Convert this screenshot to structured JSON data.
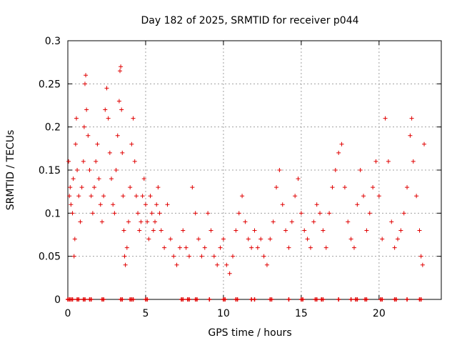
{
  "chart_data": {
    "type": "scatter",
    "title": "Day 182 of 2025, SRMTID for receiver p044",
    "xlabel": "GPS time / hours",
    "ylabel": "SRMTID / TECUs",
    "xlim": [
      0,
      24
    ],
    "ylim": [
      0,
      0.3
    ],
    "grid": true,
    "marker": "+",
    "series_color": "#e00000",
    "x_ticks": [
      0,
      5,
      10,
      15,
      20
    ],
    "y_ticks": [
      0,
      0.05,
      0.1,
      0.15,
      0.2,
      0.25,
      0.3
    ],
    "x_tick_labels": [
      "0",
      "5",
      "10",
      "15",
      "20"
    ],
    "y_tick_labels": [
      "0",
      "0.05",
      "0.1",
      "0.15",
      "0.2",
      "0.25",
      "0.3"
    ],
    "series": [
      {
        "name": "SRMTID",
        "points": [
          [
            0.05,
            0.16
          ],
          [
            0.1,
            0.12
          ],
          [
            0.15,
            0.13
          ],
          [
            0.2,
            0.11
          ],
          [
            0.3,
            0.1
          ],
          [
            0.35,
            0.14
          ],
          [
            0.4,
            0.05
          ],
          [
            0.45,
            0.07
          ],
          [
            0.5,
            0.18
          ],
          [
            0.55,
            0.21
          ],
          [
            0.6,
            0.15
          ],
          [
            0.7,
            0.12
          ],
          [
            0.8,
            0.09
          ],
          [
            0.9,
            0.13
          ],
          [
            1.0,
            0.16
          ],
          [
            1.05,
            0.2
          ],
          [
            1.1,
            0.25
          ],
          [
            1.15,
            0.26
          ],
          [
            1.2,
            0.22
          ],
          [
            1.3,
            0.19
          ],
          [
            1.4,
            0.15
          ],
          [
            1.5,
            0.12
          ],
          [
            1.6,
            0.1
          ],
          [
            1.7,
            0.13
          ],
          [
            1.8,
            0.16
          ],
          [
            1.9,
            0.18
          ],
          [
            2.0,
            0.14
          ],
          [
            2.1,
            0.11
          ],
          [
            2.2,
            0.09
          ],
          [
            2.3,
            0.12
          ],
          [
            2.4,
            0.22
          ],
          [
            2.5,
            0.245
          ],
          [
            2.6,
            0.21
          ],
          [
            2.7,
            0.17
          ],
          [
            2.8,
            0.14
          ],
          [
            2.9,
            0.11
          ],
          [
            3.0,
            0.1
          ],
          [
            3.1,
            0.15
          ],
          [
            3.2,
            0.19
          ],
          [
            3.3,
            0.23
          ],
          [
            3.35,
            0.265
          ],
          [
            3.4,
            0.27
          ],
          [
            3.45,
            0.22
          ],
          [
            3.5,
            0.17
          ],
          [
            3.55,
            0.12
          ],
          [
            3.6,
            0.08
          ],
          [
            3.65,
            0.05
          ],
          [
            3.7,
            0.04
          ],
          [
            3.8,
            0.06
          ],
          [
            3.9,
            0.09
          ],
          [
            4.0,
            0.13
          ],
          [
            4.1,
            0.18
          ],
          [
            4.2,
            0.21
          ],
          [
            4.3,
            0.16
          ],
          [
            4.4,
            0.12
          ],
          [
            4.5,
            0.1
          ],
          [
            4.6,
            0.08
          ],
          [
            4.7,
            0.09
          ],
          [
            4.8,
            0.12
          ],
          [
            4.9,
            0.14
          ],
          [
            5.0,
            0.11
          ],
          [
            5.1,
            0.09
          ],
          [
            5.2,
            0.07
          ],
          [
            5.3,
            0.12
          ],
          [
            5.4,
            0.1
          ],
          [
            5.5,
            0.08
          ],
          [
            5.6,
            0.09
          ],
          [
            5.7,
            0.11
          ],
          [
            5.8,
            0.13
          ],
          [
            5.9,
            0.1
          ],
          [
            6.0,
            0.08
          ],
          [
            6.2,
            0.06
          ],
          [
            6.4,
            0.11
          ],
          [
            6.6,
            0.07
          ],
          [
            6.8,
            0.05
          ],
          [
            7.0,
            0.04
          ],
          [
            7.2,
            0.06
          ],
          [
            7.4,
            0.08
          ],
          [
            7.6,
            0.06
          ],
          [
            7.8,
            0.05
          ],
          [
            8.0,
            0.13
          ],
          [
            8.2,
            0.1
          ],
          [
            8.4,
            0.07
          ],
          [
            8.6,
            0.05
          ],
          [
            8.8,
            0.06
          ],
          [
            9.0,
            0.1
          ],
          [
            9.2,
            0.08
          ],
          [
            9.4,
            0.05
          ],
          [
            9.6,
            0.04
          ],
          [
            9.8,
            0.06
          ],
          [
            10.0,
            0.07
          ],
          [
            10.2,
            0.04
          ],
          [
            10.4,
            0.03
          ],
          [
            10.6,
            0.05
          ],
          [
            10.8,
            0.08
          ],
          [
            11.0,
            0.1
          ],
          [
            11.2,
            0.12
          ],
          [
            11.4,
            0.09
          ],
          [
            11.6,
            0.07
          ],
          [
            11.8,
            0.06
          ],
          [
            12.0,
            0.08
          ],
          [
            12.2,
            0.06
          ],
          [
            12.4,
            0.07
          ],
          [
            12.6,
            0.05
          ],
          [
            12.8,
            0.04
          ],
          [
            13.0,
            0.07
          ],
          [
            13.2,
            0.09
          ],
          [
            13.4,
            0.13
          ],
          [
            13.6,
            0.15
          ],
          [
            13.8,
            0.11
          ],
          [
            14.0,
            0.08
          ],
          [
            14.2,
            0.06
          ],
          [
            14.4,
            0.09
          ],
          [
            14.6,
            0.12
          ],
          [
            14.8,
            0.14
          ],
          [
            15.0,
            0.1
          ],
          [
            15.2,
            0.08
          ],
          [
            15.4,
            0.07
          ],
          [
            15.6,
            0.06
          ],
          [
            15.8,
            0.09
          ],
          [
            16.0,
            0.11
          ],
          [
            16.2,
            0.1
          ],
          [
            16.4,
            0.08
          ],
          [
            16.6,
            0.06
          ],
          [
            16.8,
            0.1
          ],
          [
            17.0,
            0.13
          ],
          [
            17.2,
            0.15
          ],
          [
            17.4,
            0.17
          ],
          [
            17.6,
            0.18
          ],
          [
            17.8,
            0.13
          ],
          [
            18.0,
            0.09
          ],
          [
            18.2,
            0.07
          ],
          [
            18.4,
            0.06
          ],
          [
            18.6,
            0.11
          ],
          [
            18.8,
            0.15
          ],
          [
            19.0,
            0.12
          ],
          [
            19.2,
            0.08
          ],
          [
            19.4,
            0.1
          ],
          [
            19.6,
            0.13
          ],
          [
            19.8,
            0.16
          ],
          [
            20.0,
            0.12
          ],
          [
            20.2,
            0.07
          ],
          [
            20.4,
            0.21
          ],
          [
            20.6,
            0.16
          ],
          [
            20.8,
            0.09
          ],
          [
            21.0,
            0.06
          ],
          [
            21.2,
            0.07
          ],
          [
            21.4,
            0.08
          ],
          [
            21.6,
            0.1
          ],
          [
            21.8,
            0.13
          ],
          [
            22.0,
            0.19
          ],
          [
            22.1,
            0.21
          ],
          [
            22.2,
            0.16
          ],
          [
            22.4,
            0.12
          ],
          [
            22.6,
            0.08
          ],
          [
            22.7,
            0.05
          ],
          [
            22.8,
            0.04
          ],
          [
            22.9,
            0.18
          ]
        ]
      }
    ],
    "zero_markers_x": [
      0.0,
      0.1,
      0.2,
      0.3,
      0.6,
      0.7,
      1.0,
      1.1,
      1.4,
      1.5,
      2.2,
      2.3,
      3.4,
      3.5,
      4.0,
      4.1,
      4.2,
      5.0,
      5.1,
      7.3,
      7.4,
      7.7,
      7.8,
      8.2,
      8.3,
      9.1,
      10.0,
      10.1,
      10.8,
      10.9,
      11.8,
      12.0,
      13.0,
      13.1,
      14.2,
      15.0,
      15.1,
      15.9,
      16.0,
      16.3,
      16.4,
      17.4,
      18.2,
      18.5,
      18.6,
      19.1,
      19.2,
      20.1,
      20.2,
      21.0,
      21.1,
      21.8,
      22.6,
      22.7
    ]
  }
}
